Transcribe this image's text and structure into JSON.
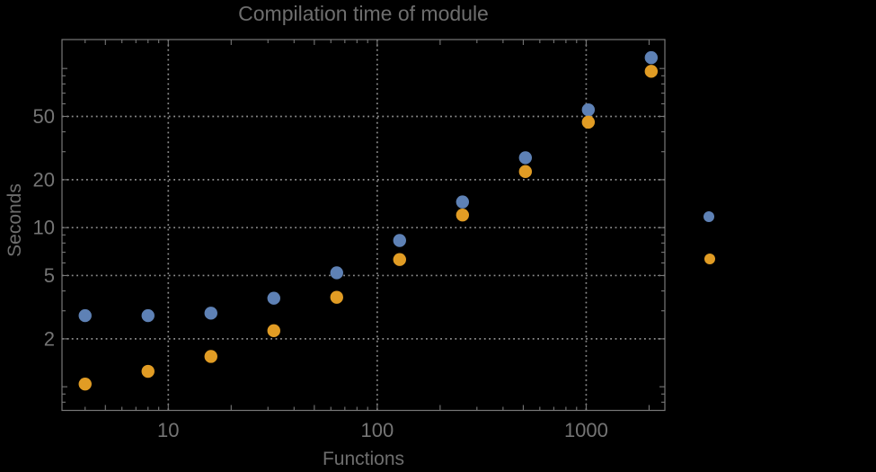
{
  "chart_data": {
    "type": "scatter",
    "title": "Compilation time of module",
    "xlabel": "Functions",
    "ylabel": "Seconds",
    "x_scale": "log",
    "y_scale": "log",
    "xlim": [
      3.1,
      2380
    ],
    "ylim": [
      0.71,
      152
    ],
    "grid": "dotted lines at labeled ticks only",
    "x": [
      4,
      8,
      16,
      32,
      64,
      128,
      256,
      512,
      1024,
      2048
    ],
    "series": [
      {
        "name": "series-1-blue",
        "color": "#5e81b5",
        "values": [
          2.8,
          2.8,
          2.9,
          3.6,
          5.2,
          8.3,
          14.5,
          27.5,
          55,
          117
        ]
      },
      {
        "name": "series-2-orange",
        "color": "#e19c24",
        "values": [
          1.04,
          1.25,
          1.55,
          2.25,
          3.65,
          6.3,
          12,
          22.5,
          46,
          96
        ]
      }
    ],
    "x_ticks_labeled": [
      10,
      100,
      1000
    ],
    "x_ticks_major_unlabeled": [
      5,
      20,
      50,
      200,
      500,
      2000
    ],
    "x_ticks_minor": [
      4,
      6,
      7,
      8,
      9,
      30,
      40,
      60,
      70,
      80,
      90,
      300,
      400,
      600,
      700,
      800,
      900
    ],
    "y_ticks_labeled": [
      2,
      5,
      10,
      20,
      50
    ],
    "y_ticks_major_unlabeled": [
      1,
      100
    ],
    "y_ticks_minor": [
      0.8,
      0.9,
      3,
      4,
      6,
      7,
      8,
      9,
      30,
      40,
      60,
      70,
      80,
      90
    ],
    "legend": {
      "position": "right-of-plot",
      "labels_visible": false,
      "markers": [
        {
          "series": "series-1-blue",
          "color": "#5e81b5"
        },
        {
          "series": "series-2-orange",
          "color": "#e19c24"
        }
      ]
    }
  },
  "colors": {
    "background": "#000000",
    "frame": "#777777",
    "grid": "#8c8c8c",
    "tick_label": "#757575",
    "title": "#6e6e6e",
    "axis_label": "#6e6e6e",
    "series1": "#5e81b5",
    "series2": "#e19c24"
  }
}
